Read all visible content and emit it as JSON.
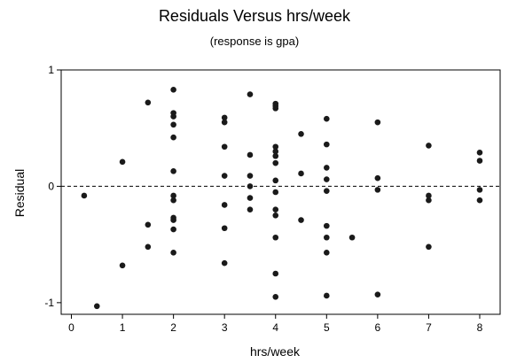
{
  "chart_data": {
    "type": "scatter",
    "title": "Residuals Versus hrs/week",
    "subtitle": "(response is gpa)",
    "xlabel": "hrs/week",
    "ylabel": "Residual",
    "xlim": [
      -0.2,
      8.4
    ],
    "ylim": [
      -1.1,
      1.0
    ],
    "x_ticks": [
      0,
      1,
      2,
      3,
      4,
      5,
      6,
      7,
      8
    ],
    "y_ticks": [
      1,
      0,
      -1
    ],
    "y_tick_labels": [
      "1",
      "0",
      "-1"
    ],
    "reference_line": {
      "y": 0,
      "style": "dashed"
    },
    "grid": false,
    "points": [
      {
        "x": 0.25,
        "y": -0.08
      },
      {
        "x": 0.5,
        "y": -1.03
      },
      {
        "x": 1.0,
        "y": 0.21
      },
      {
        "x": 1.0,
        "y": -0.68
      },
      {
        "x": 1.5,
        "y": 0.72
      },
      {
        "x": 1.5,
        "y": -0.33
      },
      {
        "x": 1.5,
        "y": -0.52
      },
      {
        "x": 2.0,
        "y": 0.83
      },
      {
        "x": 2.0,
        "y": 0.63
      },
      {
        "x": 2.0,
        "y": 0.6
      },
      {
        "x": 2.0,
        "y": 0.53
      },
      {
        "x": 2.0,
        "y": 0.42
      },
      {
        "x": 2.0,
        "y": 0.13
      },
      {
        "x": 2.0,
        "y": -0.08
      },
      {
        "x": 2.0,
        "y": -0.12
      },
      {
        "x": 2.0,
        "y": -0.27
      },
      {
        "x": 2.0,
        "y": -0.29
      },
      {
        "x": 2.0,
        "y": -0.37
      },
      {
        "x": 2.0,
        "y": -0.57
      },
      {
        "x": 3.0,
        "y": 0.59
      },
      {
        "x": 3.0,
        "y": 0.55
      },
      {
        "x": 3.0,
        "y": 0.34
      },
      {
        "x": 3.0,
        "y": 0.09
      },
      {
        "x": 3.0,
        "y": -0.16
      },
      {
        "x": 3.0,
        "y": -0.36
      },
      {
        "x": 3.0,
        "y": -0.66
      },
      {
        "x": 3.5,
        "y": 0.79
      },
      {
        "x": 3.5,
        "y": 0.27
      },
      {
        "x": 3.5,
        "y": 0.09
      },
      {
        "x": 3.5,
        "y": 0.0
      },
      {
        "x": 3.5,
        "y": -0.1
      },
      {
        "x": 3.5,
        "y": -0.2
      },
      {
        "x": 4.0,
        "y": 0.71
      },
      {
        "x": 4.0,
        "y": 0.69
      },
      {
        "x": 4.0,
        "y": 0.67
      },
      {
        "x": 4.0,
        "y": 0.34
      },
      {
        "x": 4.0,
        "y": 0.3
      },
      {
        "x": 4.0,
        "y": 0.26
      },
      {
        "x": 4.0,
        "y": 0.2
      },
      {
        "x": 4.0,
        "y": 0.05
      },
      {
        "x": 4.0,
        "y": -0.05
      },
      {
        "x": 4.0,
        "y": -0.2
      },
      {
        "x": 4.0,
        "y": -0.25
      },
      {
        "x": 4.0,
        "y": -0.44
      },
      {
        "x": 4.0,
        "y": -0.75
      },
      {
        "x": 4.0,
        "y": -0.95
      },
      {
        "x": 4.5,
        "y": 0.45
      },
      {
        "x": 4.5,
        "y": 0.11
      },
      {
        "x": 4.5,
        "y": -0.29
      },
      {
        "x": 5.0,
        "y": 0.58
      },
      {
        "x": 5.0,
        "y": 0.36
      },
      {
        "x": 5.0,
        "y": 0.16
      },
      {
        "x": 5.0,
        "y": 0.06
      },
      {
        "x": 5.0,
        "y": -0.04
      },
      {
        "x": 5.0,
        "y": -0.34
      },
      {
        "x": 5.0,
        "y": -0.44
      },
      {
        "x": 5.0,
        "y": -0.57
      },
      {
        "x": 5.0,
        "y": -0.94
      },
      {
        "x": 5.5,
        "y": -0.44
      },
      {
        "x": 6.0,
        "y": 0.55
      },
      {
        "x": 6.0,
        "y": 0.07
      },
      {
        "x": 6.0,
        "y": -0.03
      },
      {
        "x": 6.0,
        "y": -0.93
      },
      {
        "x": 7.0,
        "y": 0.35
      },
      {
        "x": 7.0,
        "y": -0.08
      },
      {
        "x": 7.0,
        "y": -0.12
      },
      {
        "x": 7.0,
        "y": -0.52
      },
      {
        "x": 8.0,
        "y": 0.29
      },
      {
        "x": 8.0,
        "y": 0.22
      },
      {
        "x": 8.0,
        "y": -0.03
      },
      {
        "x": 8.0,
        "y": -0.12
      }
    ]
  }
}
